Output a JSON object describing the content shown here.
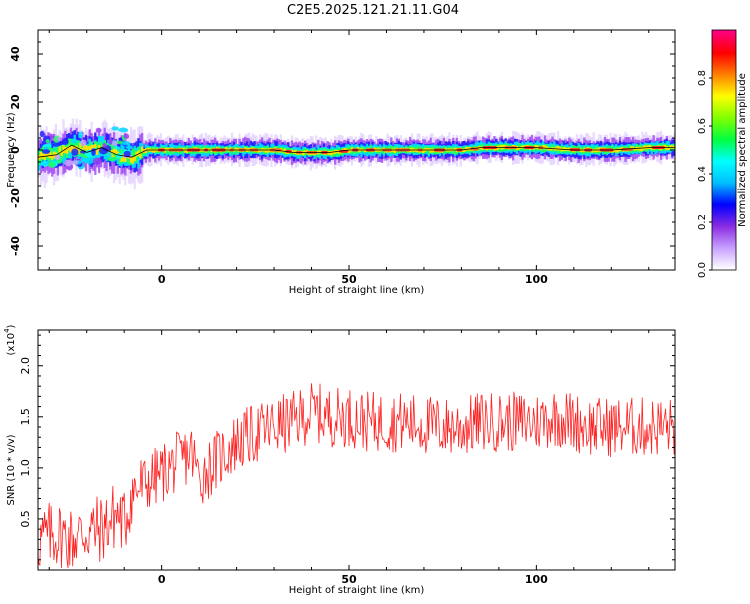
{
  "title": "C2E5.2025.121.21.11.G04",
  "chart_data": [
    {
      "type": "heatmap",
      "xlabel": "Height of straight line (km)",
      "ylabel": "Frequency (Hz)",
      "xlim": [
        -33,
        137
      ],
      "ylim": [
        -50,
        50
      ],
      "xticks": [
        0,
        50,
        100
      ],
      "yticks": [
        -40,
        -20,
        0,
        20,
        40
      ],
      "grid": false,
      "colorbar": {
        "label": "Normalized spectral amplitude",
        "range": [
          0,
          1
        ],
        "ticks": [
          "0.0",
          "0.2",
          "0.4",
          "0.6",
          "0.8"
        ],
        "colors": [
          "#ffffff",
          "#c8a0ff",
          "#8a2be2",
          "#0000ff",
          "#00bfff",
          "#00ffff",
          "#00ff40",
          "#80ff00",
          "#ffff00",
          "#ff8000",
          "#ff0000",
          "#ff0080"
        ]
      },
      "ridge": {
        "description_values": "dominant-frequency ridge (Hz) vs height (km)",
        "points": [
          {
            "x": -33,
            "y": -3
          },
          {
            "x": -28,
            "y": -2
          },
          {
            "x": -24,
            "y": 2
          },
          {
            "x": -20,
            "y": -1
          },
          {
            "x": -16,
            "y": 1
          },
          {
            "x": -12,
            "y": -2
          },
          {
            "x": -8,
            "y": -3
          },
          {
            "x": -4,
            "y": 0
          },
          {
            "x": 0,
            "y": 0
          },
          {
            "x": 10,
            "y": 0
          },
          {
            "x": 20,
            "y": 0
          },
          {
            "x": 30,
            "y": 0
          },
          {
            "x": 35,
            "y": -1
          },
          {
            "x": 45,
            "y": -1
          },
          {
            "x": 50,
            "y": 0
          },
          {
            "x": 60,
            "y": 0
          },
          {
            "x": 70,
            "y": 0
          },
          {
            "x": 80,
            "y": 0
          },
          {
            "x": 85,
            "y": 1
          },
          {
            "x": 95,
            "y": 1
          },
          {
            "x": 100,
            "y": 1
          },
          {
            "x": 110,
            "y": 0
          },
          {
            "x": 120,
            "y": 0
          },
          {
            "x": 130,
            "y": 1
          },
          {
            "x": 137,
            "y": 1
          }
        ]
      }
    },
    {
      "type": "line",
      "xlabel": "Height of straight line (km)",
      "ylabel": "SNR (10 * v/v)",
      "scale_label": "(x10",
      "scale_exp": "4",
      "xlim": [
        -33,
        137
      ],
      "ylim": [
        0,
        2.35
      ],
      "xticks": [
        0,
        50,
        100
      ],
      "yticks": [
        "0.5",
        "1.0",
        "1.5",
        "2.0"
      ],
      "grid": false,
      "series": [
        {
          "color": "#ff2020",
          "x": [
            -33,
            -28,
            -24,
            -20,
            -16,
            -12,
            -10,
            -8,
            -4,
            0,
            4,
            8,
            10,
            14,
            20,
            26,
            30,
            35,
            40,
            45,
            50,
            55,
            60,
            65,
            70,
            75,
            80,
            85,
            90,
            95,
            100,
            105,
            110,
            115,
            120,
            125,
            130,
            137
          ],
          "y": [
            0.3,
            0.35,
            0.3,
            0.38,
            0.4,
            0.55,
            0.45,
            0.75,
            0.85,
            0.95,
            1.05,
            1.15,
            0.9,
            1.05,
            1.25,
            1.35,
            1.4,
            1.45,
            1.55,
            1.5,
            1.5,
            1.45,
            1.45,
            1.45,
            1.42,
            1.4,
            1.4,
            1.45,
            1.45,
            1.45,
            1.45,
            1.5,
            1.45,
            1.4,
            1.4,
            1.4,
            1.4,
            1.4
          ]
        }
      ]
    }
  ]
}
